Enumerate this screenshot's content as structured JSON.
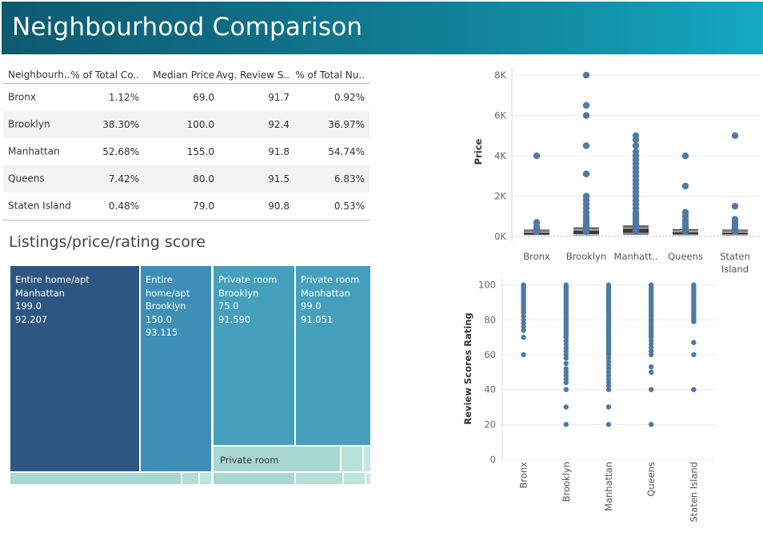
{
  "header": {
    "title": "Neighbourhood Comparison"
  },
  "table": {
    "columns": [
      "Neighbourh..",
      "% of Total Co..",
      "Median Price",
      "Avg. Review S..",
      "% of Total Nu.."
    ],
    "rows": [
      [
        "Bronx",
        "1.12%",
        "69.0",
        "91.7",
        "0.92%"
      ],
      [
        "Brooklyn",
        "38.30%",
        "100.0",
        "92.4",
        "36.97%"
      ],
      [
        "Manhattan",
        "52.68%",
        "155.0",
        "91.8",
        "54.74%"
      ],
      [
        "Queens",
        "7.42%",
        "80.0",
        "91.5",
        "6.83%"
      ],
      [
        "Staten Island",
        "0.48%",
        "79.0",
        "90.8",
        "0.53%"
      ]
    ]
  },
  "treemap": {
    "title": "Listings/price/rating score",
    "cells": [
      {
        "lines": [
          "Entire home/apt",
          "Manhattan",
          "199.0",
          "92.207"
        ],
        "color": "#2d5682"
      },
      {
        "lines": [
          "Entire",
          "home/apt",
          "Brooklyn",
          "150.0",
          "93.115"
        ],
        "color": "#3d8fb5"
      },
      {
        "lines": [
          "Private room",
          "Brooklyn",
          "75.0",
          "91.590"
        ],
        "color": "#44a0bd"
      },
      {
        "lines": [
          "Private room",
          "Manhattan",
          "99.0",
          "91.051"
        ],
        "color": "#44a0bd"
      },
      {
        "lines": [
          "Private room"
        ],
        "color": "#a8d8d3"
      }
    ]
  },
  "chart_data": [
    {
      "type": "box",
      "ylabel": "Price",
      "categories": [
        "Bronx",
        "Brooklyn",
        "Manhatt..",
        "Queens",
        "Staten Island"
      ],
      "ylim": [
        0,
        8400
      ],
      "yticks": [
        0,
        2000,
        4000,
        6000,
        8000
      ],
      "ytick_labels": [
        "0K",
        "2K",
        "4K",
        "6K",
        "8K"
      ],
      "grid": true,
      "color": "#4e79a7",
      "boxes": [
        {
          "q1": 50,
          "median": 69,
          "q3": 200
        },
        {
          "q1": 60,
          "median": 100,
          "q3": 300
        },
        {
          "q1": 90,
          "median": 155,
          "q3": 400
        },
        {
          "q1": 50,
          "median": 80,
          "q3": 220
        },
        {
          "q1": 50,
          "median": 79,
          "q3": 200
        }
      ],
      "outliers": [
        [
          4000,
          700,
          500,
          400,
          350,
          300,
          250
        ],
        [
          8000,
          6500,
          6000,
          4500,
          3100,
          2000,
          1800,
          1600,
          1400,
          1200,
          1000,
          900,
          800,
          700,
          600,
          500,
          450,
          400,
          350,
          300,
          250
        ],
        [
          5000,
          4800,
          4500,
          4200,
          4000,
          3800,
          3600,
          3400,
          3200,
          3000,
          2800,
          2600,
          2400,
          2200,
          2000,
          1800,
          1600,
          1400,
          1200,
          1100,
          1000,
          900,
          800,
          700,
          600,
          500,
          450,
          400,
          350,
          300,
          250
        ],
        [
          4000,
          2500,
          1200,
          1000,
          800,
          700,
          600,
          500,
          400,
          300,
          250
        ],
        [
          5000,
          1500,
          850,
          700,
          600,
          500,
          400,
          300,
          250
        ]
      ]
    },
    {
      "type": "scatter",
      "ylabel": "Review Scores Rating",
      "categories": [
        "Bronx",
        "Brooklyn",
        "Manhattan",
        "Queens",
        "Staten Island"
      ],
      "ylim": [
        0,
        104
      ],
      "yticks": [
        0,
        20,
        40,
        60,
        80,
        100
      ],
      "grid": true,
      "color": "#4e79a7",
      "points": [
        [
          100,
          99,
          98,
          97,
          96,
          95,
          94,
          93,
          92,
          91,
          90,
          89,
          88,
          87,
          86,
          85,
          84,
          82,
          80,
          78,
          76,
          74,
          70,
          60
        ],
        [
          100,
          99,
          98,
          97,
          96,
          95,
          94,
          93,
          92,
          91,
          90,
          89,
          88,
          87,
          86,
          85,
          84,
          83,
          82,
          81,
          80,
          79,
          78,
          77,
          76,
          75,
          74,
          73,
          72,
          71,
          70,
          68,
          66,
          64,
          62,
          60,
          58,
          55,
          52,
          50,
          48,
          46,
          44,
          40,
          30,
          20
        ],
        [
          100,
          99,
          98,
          97,
          96,
          95,
          94,
          93,
          92,
          91,
          90,
          89,
          88,
          87,
          86,
          85,
          84,
          83,
          82,
          81,
          80,
          79,
          78,
          77,
          76,
          75,
          74,
          73,
          72,
          71,
          70,
          69,
          68,
          67,
          66,
          65,
          64,
          63,
          62,
          61,
          60,
          58,
          56,
          54,
          52,
          50,
          48,
          46,
          44,
          42,
          40,
          30,
          20
        ],
        [
          100,
          99,
          98,
          97,
          96,
          95,
          94,
          93,
          92,
          91,
          90,
          89,
          88,
          87,
          86,
          85,
          84,
          83,
          82,
          81,
          80,
          79,
          78,
          77,
          76,
          75,
          74,
          73,
          72,
          71,
          70,
          68,
          66,
          64,
          62,
          60,
          53,
          50,
          40,
          20
        ],
        [
          100,
          99,
          98,
          97,
          96,
          95,
          94,
          93,
          92,
          91,
          90,
          89,
          88,
          87,
          86,
          85,
          84,
          83,
          82,
          81,
          80,
          79,
          67,
          60,
          40
        ]
      ]
    }
  ]
}
